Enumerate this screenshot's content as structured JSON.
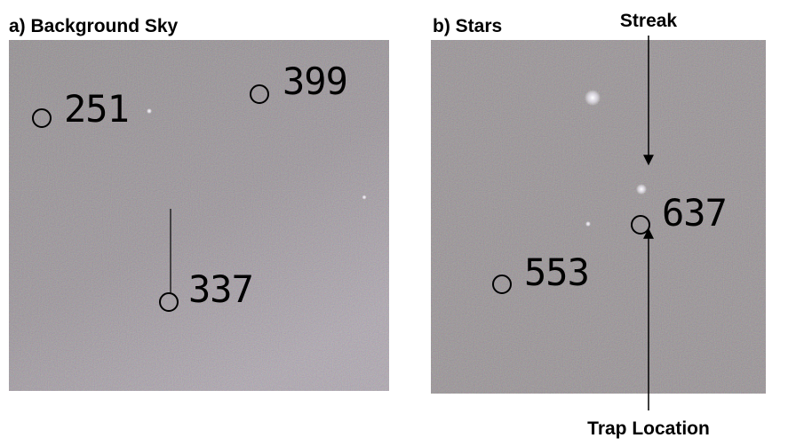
{
  "panels": [
    {
      "title": "a) Background Sky",
      "labels": [
        "251",
        "399",
        "337"
      ]
    },
    {
      "title": "b) Stars",
      "labels": [
        "637",
        "553"
      ]
    }
  ],
  "annotations": {
    "streak": "Streak",
    "trap": "Trap Location"
  }
}
